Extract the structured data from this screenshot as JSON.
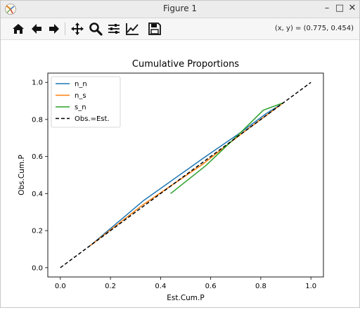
{
  "window": {
    "title": "Figure 1",
    "controls": {
      "minimize": "–",
      "maximize": "□",
      "close": "✕"
    }
  },
  "toolbar": {
    "icons": [
      "home-icon",
      "back-icon",
      "forward-icon",
      "pan-icon",
      "zoom-icon",
      "configure-subplots-icon",
      "edit-axis-icon",
      "save-icon"
    ],
    "coordinates": "(x, y) = (0.775, 0.454)"
  },
  "chart_data": {
    "type": "line",
    "title": "Cumulative Proportions",
    "xlabel": "Est.Cum.P",
    "ylabel": "Obs.Cum.P",
    "xlim": [
      -0.05,
      1.05
    ],
    "ylim": [
      -0.05,
      1.05
    ],
    "xticks": [
      0.0,
      0.2,
      0.4,
      0.6,
      0.8,
      1.0
    ],
    "yticks": [
      0.0,
      0.2,
      0.4,
      0.6,
      0.8,
      1.0
    ],
    "tick_labels_x": [
      "0.0",
      "0.2",
      "0.4",
      "0.6",
      "0.8",
      "1.0"
    ],
    "tick_labels_y": [
      "0.0",
      "0.2",
      "0.4",
      "0.6",
      "0.8",
      "1.0"
    ],
    "legend_position": "upper-left",
    "grid": false,
    "series": [
      {
        "name": "n_n",
        "color": "#1f77b4",
        "dash": "solid",
        "x": [
          0.12,
          0.33,
          0.58,
          0.72,
          0.82,
          0.89
        ],
        "y": [
          0.12,
          0.36,
          0.6,
          0.73,
          0.83,
          0.89
        ]
      },
      {
        "name": "n_s",
        "color": "#ff7f0e",
        "dash": "solid",
        "x": [
          0.12,
          0.33,
          0.57,
          0.72,
          0.82,
          0.89
        ],
        "y": [
          0.12,
          0.34,
          0.56,
          0.72,
          0.82,
          0.89
        ]
      },
      {
        "name": "s_n",
        "color": "#2ca02c",
        "dash": "solid",
        "x": [
          0.44,
          0.58,
          0.72,
          0.81,
          0.89
        ],
        "y": [
          0.4,
          0.55,
          0.73,
          0.85,
          0.89
        ]
      },
      {
        "name": "Obs.=Est.",
        "color": "#000000",
        "dash": "dashed",
        "x": [
          0.0,
          1.0
        ],
        "y": [
          0.0,
          1.0
        ]
      }
    ]
  }
}
